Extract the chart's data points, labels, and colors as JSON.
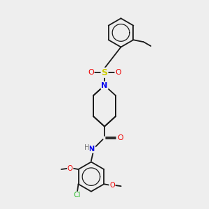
{
  "background_color": "#eeeeee",
  "bond_color": "#1a1a1a",
  "atom_colors": {
    "N": "#0000ee",
    "O": "#ee0000",
    "S": "#cccc00",
    "Cl": "#22bb22",
    "H": "#777777",
    "C": "#1a1a1a"
  },
  "figsize": [
    3.0,
    3.0
  ],
  "dpi": 100
}
